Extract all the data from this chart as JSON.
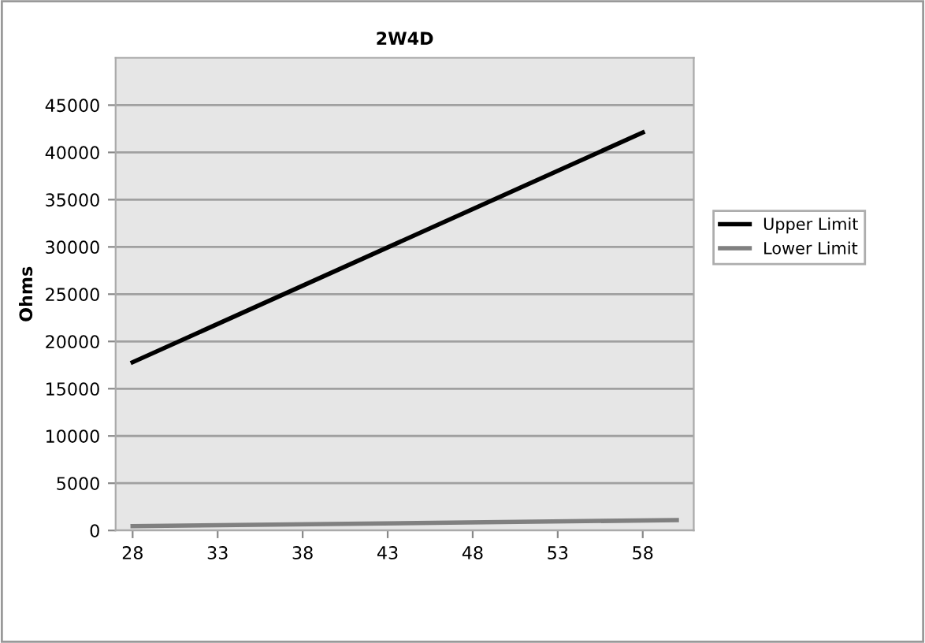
{
  "chart_data": {
    "type": "line",
    "title": "2W4D",
    "ylabel": "Ohms",
    "series": [
      {
        "name": "Upper Limit",
        "color": "#000000",
        "x": [
          28,
          58
        ],
        "values": [
          17800,
          42100
        ]
      },
      {
        "name": "Lower Limit",
        "color": "#808080",
        "x": [
          28,
          60
        ],
        "values": [
          450,
          1100
        ]
      }
    ],
    "xlim": [
      27,
      61
    ],
    "xticks": [
      28,
      33,
      38,
      43,
      48,
      53,
      58
    ],
    "ylim": [
      0,
      50000
    ],
    "yticks": [
      0,
      5000,
      10000,
      15000,
      20000,
      25000,
      30000,
      35000,
      40000,
      45000
    ],
    "grid": "y",
    "legend": "right",
    "marker": "none",
    "line_style": "solid"
  }
}
